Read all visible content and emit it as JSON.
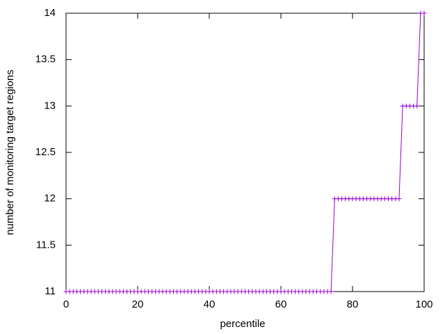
{
  "chart_data": {
    "type": "line",
    "xlabel": "percentile",
    "ylabel": "number of monitoring target regions",
    "x": [
      0,
      1,
      2,
      3,
      4,
      5,
      6,
      7,
      8,
      9,
      10,
      11,
      12,
      13,
      14,
      15,
      16,
      17,
      18,
      19,
      20,
      21,
      22,
      23,
      24,
      25,
      26,
      27,
      28,
      29,
      30,
      31,
      32,
      33,
      34,
      35,
      36,
      37,
      38,
      39,
      40,
      41,
      42,
      43,
      44,
      45,
      46,
      47,
      48,
      49,
      50,
      51,
      52,
      53,
      54,
      55,
      56,
      57,
      58,
      59,
      60,
      61,
      62,
      63,
      64,
      65,
      66,
      67,
      68,
      69,
      70,
      71,
      72,
      73,
      74,
      75,
      76,
      77,
      78,
      79,
      80,
      81,
      82,
      83,
      84,
      85,
      86,
      87,
      88,
      89,
      90,
      91,
      92,
      93,
      94,
      95,
      96,
      97,
      98,
      99,
      100
    ],
    "series": [
      {
        "color": "#9400d3",
        "values": [
          11,
          11,
          11,
          11,
          11,
          11,
          11,
          11,
          11,
          11,
          11,
          11,
          11,
          11,
          11,
          11,
          11,
          11,
          11,
          11,
          11,
          11,
          11,
          11,
          11,
          11,
          11,
          11,
          11,
          11,
          11,
          11,
          11,
          11,
          11,
          11,
          11,
          11,
          11,
          11,
          11,
          11,
          11,
          11,
          11,
          11,
          11,
          11,
          11,
          11,
          11,
          11,
          11,
          11,
          11,
          11,
          11,
          11,
          11,
          11,
          11,
          11,
          11,
          11,
          11,
          11,
          11,
          11,
          11,
          11,
          11,
          11,
          11,
          11,
          11,
          12,
          12,
          12,
          12,
          12,
          12,
          12,
          12,
          12,
          12,
          12,
          12,
          12,
          12,
          12,
          12,
          12,
          12,
          12,
          13,
          13,
          13,
          13,
          13,
          14,
          14
        ]
      }
    ],
    "xlim": [
      0,
      100
    ],
    "xticks": [
      0,
      20,
      40,
      60,
      80,
      100
    ],
    "ylim": [
      11,
      14
    ],
    "yticks": [
      11,
      11.5,
      12,
      12.5,
      13,
      13.5,
      14
    ],
    "grid": false
  }
}
